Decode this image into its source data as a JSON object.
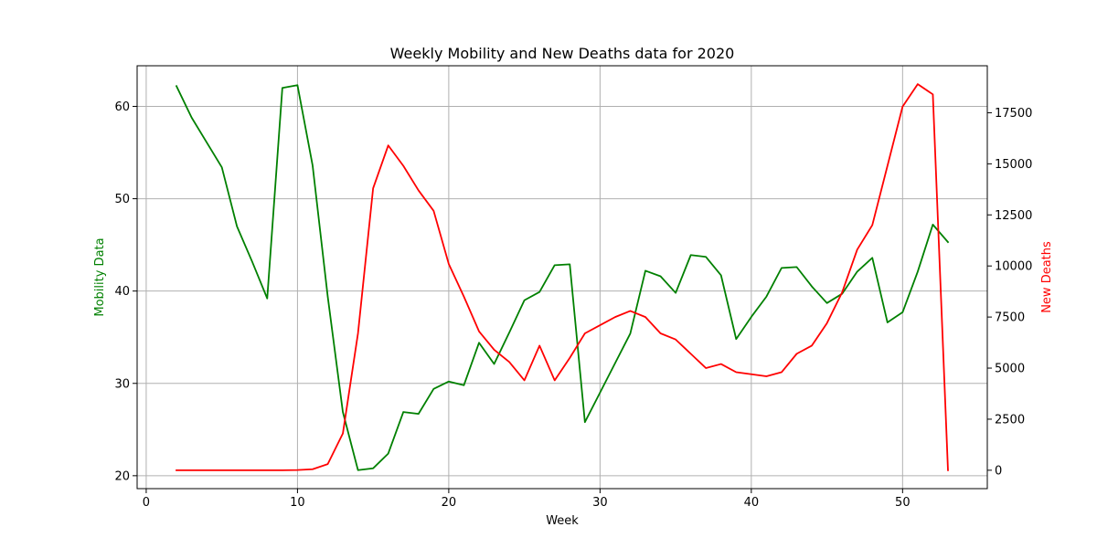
{
  "chart_data": {
    "type": "line",
    "title": "Weekly Mobility and New Deaths data for 2020",
    "xlabel": "Week",
    "ylabel_left": "Mobility Data",
    "ylabel_right": "New Deaths",
    "xlim": [
      -0.6,
      55.6
    ],
    "ylim_left": [
      18.6,
      64.4
    ],
    "ylim_right": [
      -900,
      19800
    ],
    "xticks": [
      0,
      10,
      20,
      30,
      40,
      50
    ],
    "yticks_left": [
      20,
      30,
      40,
      50,
      60
    ],
    "yticks_right": [
      0,
      2500,
      5000,
      7500,
      10000,
      12500,
      15000,
      17500
    ],
    "grid": true,
    "x": [
      2,
      3,
      4,
      5,
      6,
      7,
      8,
      9,
      10,
      11,
      12,
      13,
      14,
      15,
      16,
      17,
      18,
      19,
      20,
      21,
      22,
      23,
      24,
      25,
      26,
      27,
      28,
      29,
      30,
      31,
      32,
      33,
      34,
      35,
      36,
      37,
      38,
      39,
      40,
      41,
      42,
      43,
      44,
      45,
      46,
      47,
      48,
      49,
      50,
      51,
      52,
      53
    ],
    "series": [
      {
        "axis": "left",
        "color": "#008000",
        "values": [
          62.2,
          58.8,
          56.1,
          53.4,
          47.0,
          43.2,
          39.2,
          62.0,
          62.3,
          53.6,
          39.4,
          26.9,
          20.6,
          20.8,
          22.4,
          26.9,
          26.7,
          29.4,
          30.2,
          29.8,
          34.4,
          32.1,
          35.5,
          39.0,
          39.9,
          42.8,
          42.9,
          25.8,
          29.0,
          32.2,
          35.4,
          42.2,
          41.6,
          39.8,
          43.9,
          43.7,
          41.7,
          34.8,
          37.2,
          39.4,
          42.5,
          42.6,
          40.5,
          38.7,
          39.7,
          42.1,
          43.6,
          36.6,
          37.7,
          42.1,
          47.2,
          45.3
        ]
      },
      {
        "axis": "right",
        "color": "#ff0000",
        "values": [
          0,
          0,
          0,
          0,
          0,
          0,
          0,
          0,
          10,
          50,
          300,
          1800,
          6700,
          13800,
          15900,
          14900,
          13700,
          12700,
          10100,
          8500,
          6800,
          5900,
          5300,
          4400,
          6100,
          4400,
          5500,
          6700,
          7100,
          7500,
          7800,
          7500,
          6700,
          6400,
          5700,
          5000,
          5200,
          4800,
          4700,
          4600,
          4800,
          5700,
          6100,
          7200,
          8700,
          10800,
          12000,
          14900,
          17800,
          18900,
          18400,
          0
        ]
      }
    ]
  }
}
